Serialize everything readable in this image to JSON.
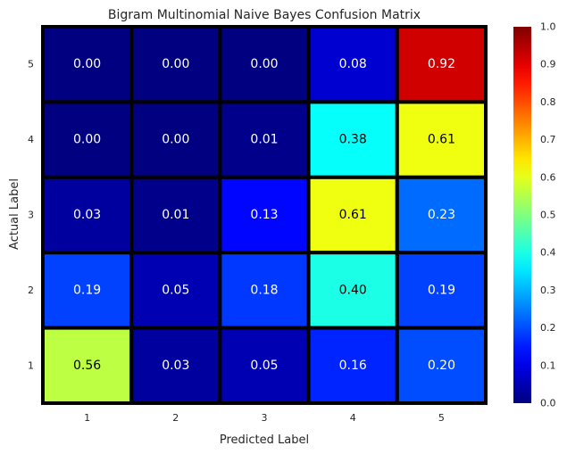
{
  "chart_data": {
    "type": "heatmap",
    "title": "Bigram Multinomial Naive Bayes Confusion Matrix",
    "xlabel": "Predicted Label",
    "ylabel": "Actual Label",
    "x_categories": [
      "1",
      "2",
      "3",
      "4",
      "5"
    ],
    "y_categories": [
      "5",
      "4",
      "3",
      "2",
      "1"
    ],
    "values": [
      [
        0.0,
        0.0,
        0.0,
        0.08,
        0.92
      ],
      [
        0.0,
        0.0,
        0.01,
        0.38,
        0.61
      ],
      [
        0.03,
        0.01,
        0.13,
        0.61,
        0.23
      ],
      [
        0.19,
        0.05,
        0.18,
        0.4,
        0.19
      ],
      [
        0.56,
        0.03,
        0.05,
        0.16,
        0.2
      ]
    ],
    "value_labels": [
      [
        "0.00",
        "0.00",
        "0.00",
        "0.08",
        "0.92"
      ],
      [
        "0.00",
        "0.00",
        "0.01",
        "0.38",
        "0.61"
      ],
      [
        "0.03",
        "0.01",
        "0.13",
        "0.61",
        "0.23"
      ],
      [
        "0.19",
        "0.05",
        "0.18",
        "0.40",
        "0.19"
      ],
      [
        "0.56",
        "0.03",
        "0.05",
        "0.16",
        "0.20"
      ]
    ],
    "colormap": "jet",
    "vmin": 0.0,
    "vmax": 1.0,
    "colorbar_ticks": [
      "0.0",
      "0.1",
      "0.2",
      "0.3",
      "0.4",
      "0.5",
      "0.6",
      "0.7",
      "0.8",
      "0.9",
      "1.0"
    ],
    "cell_border_color": "#000000"
  }
}
